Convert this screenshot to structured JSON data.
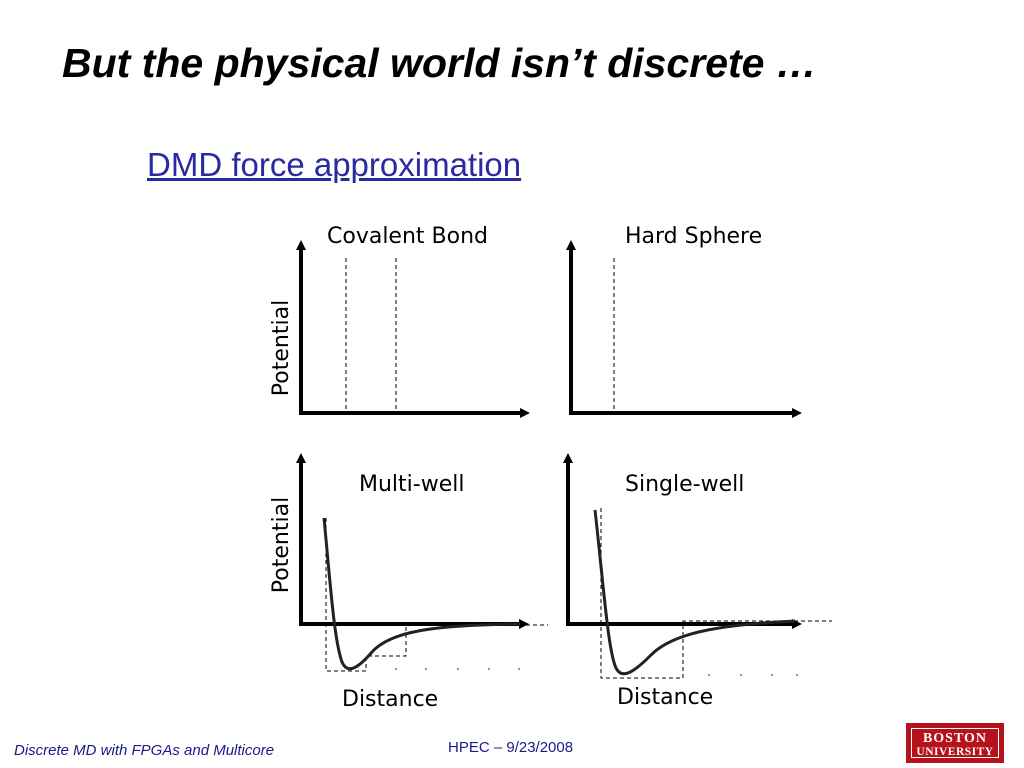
{
  "slide": {
    "title": "But the physical world isn’t discrete …",
    "subtitle": "DMD force approximation"
  },
  "diagram": {
    "panels": [
      {
        "key": "covalent",
        "label": "Covalent Bond"
      },
      {
        "key": "hard",
        "label": "Hard Sphere"
      },
      {
        "key": "multi",
        "label": "Multi-well"
      },
      {
        "key": "single",
        "label": "Single-well"
      }
    ],
    "y_axis_label": "Potential",
    "x_axis_label": "Distance"
  },
  "footer": {
    "left": "Discrete MD with FPGAs and Multicore",
    "center": "HPEC  –  9/23/2008"
  },
  "logo": {
    "line1": "BOSTON",
    "line2": "UNIVERSITY"
  },
  "colors": {
    "title": "#000000",
    "subtitle": "#2a2aa0",
    "footer_text": "#1a1a8c",
    "logo_bg": "#b5121b"
  }
}
